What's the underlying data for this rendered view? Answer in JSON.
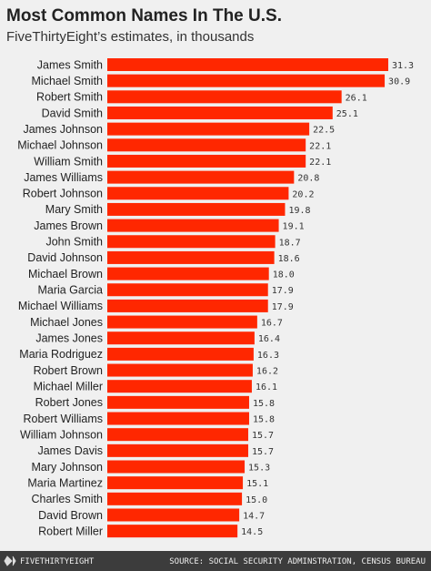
{
  "chart_data": {
    "type": "bar",
    "orientation": "horizontal",
    "title": "Most Common Names In The U.S.",
    "subtitle": "FiveThirtyEight’s estimates, in thousands",
    "categories": [
      "James Smith",
      "Michael Smith",
      "Robert Smith",
      "David Smith",
      "James Johnson",
      "Michael Johnson",
      "William Smith",
      "James Williams",
      "Robert Johnson",
      "Mary Smith",
      "James Brown",
      "John Smith",
      "David Johnson",
      "Michael Brown",
      "Maria Garcia",
      "Michael Williams",
      "Michael Jones",
      "James Jones",
      "Maria Rodriguez",
      "Robert Brown",
      "Michael Miller",
      "Robert Jones",
      "Robert Williams",
      "William Johnson",
      "James Davis",
      "Mary Johnson",
      "Maria Martinez",
      "Charles Smith",
      "David Brown",
      "Robert Miller"
    ],
    "values": [
      31.3,
      30.9,
      26.1,
      25.1,
      22.5,
      22.1,
      22.1,
      20.8,
      20.2,
      19.8,
      19.1,
      18.7,
      18.6,
      18.0,
      17.9,
      17.9,
      16.7,
      16.4,
      16.3,
      16.2,
      16.1,
      15.8,
      15.8,
      15.7,
      15.7,
      15.3,
      15.1,
      15.0,
      14.7,
      14.5
    ],
    "value_labels": [
      "31.3",
      "30.9",
      "26.1",
      "25.1",
      "22.5",
      "22.1",
      "22.1",
      "20.8",
      "20.2",
      "19.8",
      "19.1",
      "18.7",
      "18.6",
      "18.0",
      "17.9",
      "17.9",
      "16.7",
      "16.4",
      "16.3",
      "16.2",
      "16.1",
      "15.8",
      "15.8",
      "15.7",
      "15.7",
      "15.3",
      "15.1",
      "15.0",
      "14.7",
      "14.5"
    ],
    "color": "#ff2700",
    "logo": "FIVETHIRTYEIGHT",
    "source": "SOURCE: SOCIAL SECURITY ADMINSTRATION, CENSUS BUREAU"
  }
}
